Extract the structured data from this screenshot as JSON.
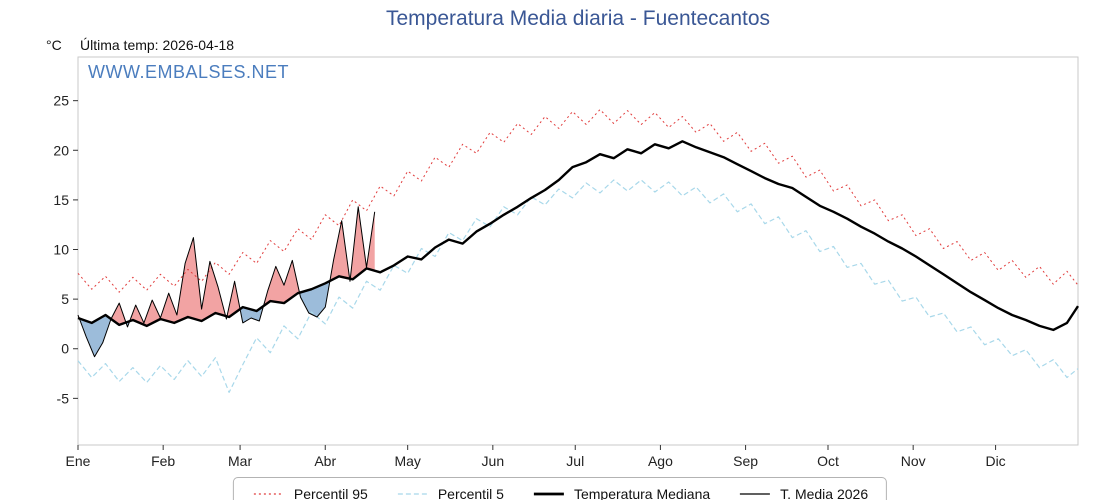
{
  "header": {
    "title": "Temperatura Media diaria - Fuentecantos",
    "unit": "°C",
    "last_temp_label": "Última temp: 2026-04-18"
  },
  "plot": {
    "watermark": "WWW.EMBALSES.NET"
  },
  "chart_data": {
    "type": "line",
    "title": "Temperatura Media diaria - Fuentecantos",
    "xlabel": "",
    "ylabel": "°C",
    "ylim": [
      -9.7,
      29.4
    ],
    "x_range": [
      0,
      364
    ],
    "grid": false,
    "legend_position": "bottom",
    "colors": {
      "title": "#3a5795",
      "watermark": "#4b7dbe",
      "frame": "#c9c9c9",
      "tick_text": "#222222"
    },
    "y_ticks": [
      -5,
      0,
      5,
      10,
      15,
      20,
      25
    ],
    "x_ticks": [
      {
        "label": "Ene",
        "day": 0
      },
      {
        "label": "Feb",
        "day": 31
      },
      {
        "label": "Mar",
        "day": 59
      },
      {
        "label": "Abr",
        "day": 90
      },
      {
        "label": "May",
        "day": 120
      },
      {
        "label": "Jun",
        "day": 151
      },
      {
        "label": "Jul",
        "day": 181
      },
      {
        "label": "Ago",
        "day": 212
      },
      {
        "label": "Sep",
        "day": 243
      },
      {
        "label": "Oct",
        "day": 273
      },
      {
        "label": "Nov",
        "day": 304
      },
      {
        "label": "Dic",
        "day": 334
      }
    ],
    "fill_between": {
      "upper": "t2026",
      "lower": "mediana",
      "above_color": "#f2a3a3",
      "below_color": "#9cbcda"
    },
    "series": [
      {
        "key": "p95",
        "name": "Percentil 95",
        "color": "#e13c3c",
        "width": 1,
        "dash": "dotted",
        "x_start": 0,
        "x_step": 5,
        "values": [
          7.6,
          6.0,
          7.3,
          5.7,
          7.2,
          5.9,
          7.5,
          6.3,
          8.0,
          6.8,
          8.7,
          7.5,
          9.7,
          8.6,
          10.9,
          9.8,
          12.1,
          11.0,
          13.5,
          12.4,
          15.0,
          13.9,
          16.4,
          15.4,
          17.9,
          16.9,
          19.3,
          18.3,
          20.6,
          19.7,
          21.8,
          20.8,
          22.7,
          21.6,
          23.4,
          22.2,
          23.9,
          22.6,
          24.1,
          22.7,
          24.0,
          22.6,
          23.8,
          22.3,
          23.4,
          21.8,
          22.7,
          20.9,
          21.8,
          19.9,
          20.7,
          18.7,
          19.4,
          17.3,
          18.0,
          15.9,
          16.5,
          14.4,
          15.0,
          12.9,
          13.5,
          11.4,
          12.1,
          10.1,
          10.8,
          8.9,
          9.7,
          7.9,
          8.9,
          7.2,
          8.3,
          6.5,
          7.8,
          6.4
        ]
      },
      {
        "key": "p5",
        "name": "Percentil 5",
        "color": "#a8d8ea",
        "width": 1.2,
        "dash": "dashed",
        "x_start": 0,
        "x_step": 5,
        "values": [
          -1.2,
          -2.9,
          -1.5,
          -3.3,
          -1.9,
          -3.4,
          -1.7,
          -3.1,
          -1.2,
          -2.8,
          -0.9,
          -4.4,
          -1.6,
          1.1,
          -0.4,
          2.3,
          1.0,
          3.7,
          2.5,
          5.2,
          4.1,
          6.8,
          5.9,
          8.4,
          7.6,
          10.1,
          9.3,
          11.7,
          10.9,
          13.1,
          12.3,
          14.3,
          13.5,
          15.3,
          14.5,
          16.1,
          15.2,
          16.7,
          15.7,
          17.0,
          15.9,
          17.0,
          15.8,
          16.8,
          15.4,
          16.3,
          14.7,
          15.6,
          13.8,
          14.6,
          12.6,
          13.3,
          11.2,
          11.9,
          9.8,
          10.3,
          8.2,
          8.6,
          6.5,
          6.9,
          4.8,
          5.2,
          3.2,
          3.6,
          1.7,
          2.2,
          0.4,
          1.0,
          -0.7,
          -0.1,
          -1.9,
          -1.1,
          -2.9,
          -2.0
        ]
      },
      {
        "key": "mediana",
        "name": "Temperatura Mediana",
        "color": "#000000",
        "width": 2.4,
        "dash": "solid",
        "x_start": 0,
        "x_step": 5,
        "values": [
          3.1,
          2.6,
          3.4,
          2.4,
          2.9,
          2.3,
          3.0,
          2.6,
          3.2,
          2.8,
          3.6,
          3.2,
          4.2,
          3.8,
          4.8,
          4.6,
          5.6,
          6.0,
          6.6,
          7.3,
          7.0,
          8.1,
          7.7,
          8.4,
          9.3,
          9.0,
          10.2,
          11.0,
          10.6,
          11.8,
          12.6,
          13.5,
          14.3,
          15.2,
          16.0,
          17.0,
          18.3,
          18.8,
          19.6,
          19.2,
          20.1,
          19.7,
          20.6,
          20.2,
          20.9,
          20.3,
          19.8,
          19.3,
          18.6,
          17.9,
          17.2,
          16.6,
          16.2,
          15.3,
          14.4,
          13.8,
          13.1,
          12.3,
          11.6,
          10.8,
          10.1,
          9.3,
          8.4,
          7.5,
          6.6,
          5.7,
          4.9,
          4.1,
          3.4,
          2.9,
          2.3,
          1.9,
          2.6,
          4.3
        ]
      },
      {
        "key": "t2026",
        "name": "T. Media 2026",
        "color": "#000000",
        "width": 1,
        "dash": "solid",
        "x_start": 0,
        "x_step": 3,
        "values": [
          3.4,
          1.2,
          -0.8,
          0.6,
          3.0,
          4.6,
          2.2,
          4.4,
          2.6,
          4.9,
          3.1,
          5.6,
          3.4,
          8.6,
          11.2,
          4.0,
          8.8,
          6.2,
          3.0,
          6.8,
          2.6,
          3.1,
          2.8,
          5.8,
          8.3,
          6.4,
          8.9,
          5.2,
          3.6,
          3.2,
          4.2,
          8.9,
          12.9,
          6.8,
          14.3,
          8.2,
          13.8
        ]
      }
    ]
  }
}
